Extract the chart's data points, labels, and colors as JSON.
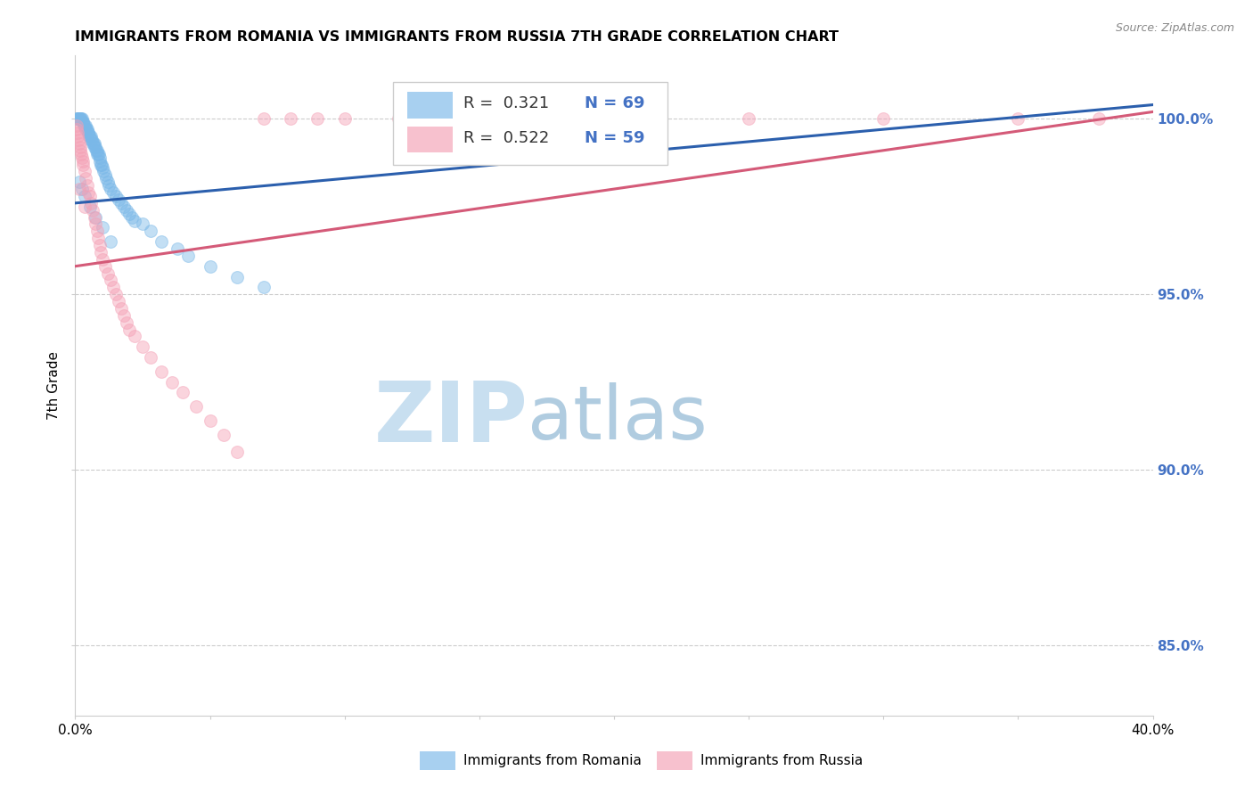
{
  "title": "IMMIGRANTS FROM ROMANIA VS IMMIGRANTS FROM RUSSIA 7TH GRADE CORRELATION CHART",
  "source": "Source: ZipAtlas.com",
  "ylabel": "7th Grade",
  "xlim": [
    0.0,
    40.0
  ],
  "ylim": [
    83.0,
    101.8
  ],
  "yticks": [
    85.0,
    90.0,
    95.0,
    100.0
  ],
  "ytick_labels": [
    "85.0%",
    "90.0%",
    "95.0%",
    "100.0%"
  ],
  "blue_color": "#7ab8e8",
  "pink_color": "#f4a0b5",
  "blue_line_color": "#2b5fad",
  "pink_line_color": "#d45a78",
  "legend_R_blue": "R =  0.321",
  "legend_N_blue": "N = 69",
  "legend_R_pink": "R =  0.522",
  "legend_N_pink": "N = 59",
  "blue_scatter_x": [
    0.05,
    0.08,
    0.1,
    0.12,
    0.15,
    0.18,
    0.2,
    0.22,
    0.25,
    0.28,
    0.3,
    0.32,
    0.35,
    0.38,
    0.4,
    0.42,
    0.45,
    0.48,
    0.5,
    0.52,
    0.55,
    0.58,
    0.6,
    0.62,
    0.65,
    0.68,
    0.7,
    0.72,
    0.75,
    0.78,
    0.8,
    0.82,
    0.85,
    0.88,
    0.9,
    0.92,
    0.95,
    0.98,
    1.0,
    1.05,
    1.1,
    1.15,
    1.2,
    1.25,
    1.3,
    1.4,
    1.5,
    1.6,
    1.7,
    1.8,
    1.9,
    2.0,
    2.1,
    2.2,
    2.5,
    2.8,
    3.2,
    3.8,
    4.2,
    5.0,
    6.0,
    7.0,
    0.15,
    0.25,
    0.35,
    0.55,
    0.75,
    1.0,
    1.3
  ],
  "blue_scatter_y": [
    100.0,
    100.0,
    100.0,
    100.0,
    100.0,
    100.0,
    100.0,
    100.0,
    100.0,
    99.9,
    99.9,
    99.8,
    99.8,
    99.8,
    99.7,
    99.7,
    99.7,
    99.6,
    99.6,
    99.5,
    99.5,
    99.5,
    99.4,
    99.4,
    99.3,
    99.3,
    99.3,
    99.2,
    99.2,
    99.1,
    99.1,
    99.0,
    99.0,
    99.0,
    98.9,
    98.8,
    98.7,
    98.7,
    98.6,
    98.5,
    98.4,
    98.3,
    98.2,
    98.1,
    98.0,
    97.9,
    97.8,
    97.7,
    97.6,
    97.5,
    97.4,
    97.3,
    97.2,
    97.1,
    97.0,
    96.8,
    96.5,
    96.3,
    96.1,
    95.8,
    95.5,
    95.2,
    98.2,
    98.0,
    97.8,
    97.5,
    97.2,
    96.9,
    96.5
  ],
  "pink_scatter_x": [
    0.04,
    0.06,
    0.08,
    0.1,
    0.12,
    0.15,
    0.18,
    0.2,
    0.22,
    0.25,
    0.28,
    0.3,
    0.35,
    0.4,
    0.45,
    0.5,
    0.55,
    0.6,
    0.65,
    0.7,
    0.75,
    0.8,
    0.85,
    0.9,
    0.95,
    1.0,
    1.1,
    1.2,
    1.3,
    1.4,
    1.5,
    1.6,
    1.7,
    1.8,
    1.9,
    2.0,
    2.2,
    2.5,
    2.8,
    3.2,
    3.6,
    4.0,
    4.5,
    5.0,
    5.5,
    6.0,
    7.0,
    8.0,
    9.0,
    10.0,
    12.0,
    15.0,
    20.0,
    25.0,
    30.0,
    35.0,
    38.0,
    0.15,
    0.35
  ],
  "pink_scatter_y": [
    99.8,
    99.7,
    99.6,
    99.5,
    99.4,
    99.3,
    99.2,
    99.1,
    99.0,
    98.9,
    98.8,
    98.7,
    98.5,
    98.3,
    98.1,
    97.9,
    97.8,
    97.6,
    97.4,
    97.2,
    97.0,
    96.8,
    96.6,
    96.4,
    96.2,
    96.0,
    95.8,
    95.6,
    95.4,
    95.2,
    95.0,
    94.8,
    94.6,
    94.4,
    94.2,
    94.0,
    93.8,
    93.5,
    93.2,
    92.8,
    92.5,
    92.2,
    91.8,
    91.4,
    91.0,
    90.5,
    100.0,
    100.0,
    100.0,
    100.0,
    100.0,
    100.0,
    100.0,
    100.0,
    100.0,
    100.0,
    100.0,
    98.0,
    97.5
  ],
  "blue_line_x0": 0.0,
  "blue_line_y0": 97.6,
  "blue_line_x1": 40.0,
  "blue_line_y1": 100.4,
  "pink_line_x0": 0.0,
  "pink_line_y0": 95.8,
  "pink_line_x1": 40.0,
  "pink_line_y1": 100.2,
  "watermark_zip_color": "#c8dff0",
  "watermark_atlas_color": "#b0cce0",
  "background_color": "#ffffff",
  "grid_color": "#cccccc",
  "right_axis_color": "#4472c4",
  "marker_size": 100,
  "marker_alpha": 0.45,
  "legend_color": "#4472c4",
  "text_color_dark": "#333333"
}
